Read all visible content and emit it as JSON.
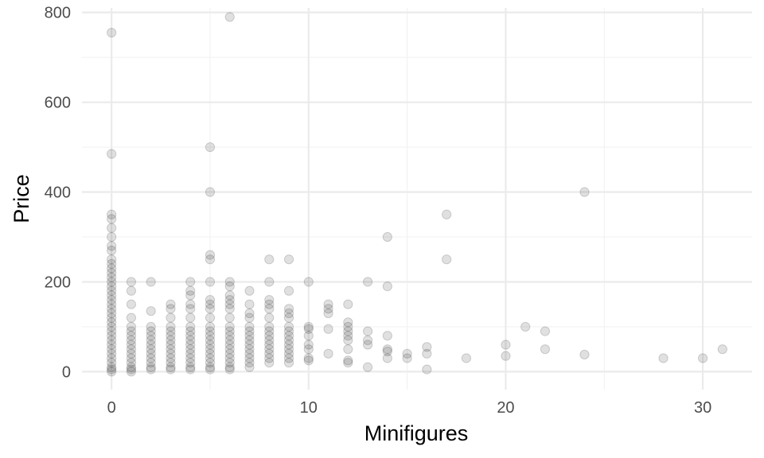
{
  "chart_data": {
    "type": "scatter",
    "title": "",
    "xlabel": "Minifigures",
    "ylabel": "Price",
    "xlim": [
      -1.5,
      32.5
    ],
    "ylim": [
      -40,
      810
    ],
    "x_ticks": [
      0,
      10,
      20,
      30
    ],
    "y_ticks": [
      0,
      200,
      400,
      600,
      800
    ],
    "x_tick_labels": [
      "0",
      "10",
      "20",
      "30"
    ],
    "y_tick_labels": [
      "0",
      "200",
      "400",
      "600",
      "800"
    ],
    "grid": true,
    "legend": "none",
    "point_color": "#000000",
    "point_alpha": 0.15,
    "points": [
      [
        0,
        755
      ],
      [
        0,
        485
      ],
      [
        0,
        350
      ],
      [
        0,
        340
      ],
      [
        0,
        320
      ],
      [
        0,
        300
      ],
      [
        0,
        280
      ],
      [
        0,
        270
      ],
      [
        0,
        250
      ],
      [
        0,
        240
      ],
      [
        0,
        230
      ],
      [
        0,
        220
      ],
      [
        0,
        210
      ],
      [
        0,
        200
      ],
      [
        0,
        190
      ],
      [
        0,
        180
      ],
      [
        0,
        170
      ],
      [
        0,
        160
      ],
      [
        0,
        150
      ],
      [
        0,
        140
      ],
      [
        0,
        130
      ],
      [
        0,
        120
      ],
      [
        0,
        110
      ],
      [
        0,
        100
      ],
      [
        0,
        90
      ],
      [
        0,
        80
      ],
      [
        0,
        70
      ],
      [
        0,
        60
      ],
      [
        0,
        50
      ],
      [
        0,
        40
      ],
      [
        0,
        30
      ],
      [
        0,
        20
      ],
      [
        0,
        10
      ],
      [
        0,
        5
      ],
      [
        0,
        0
      ],
      [
        1,
        200
      ],
      [
        1,
        180
      ],
      [
        1,
        150
      ],
      [
        1,
        120
      ],
      [
        1,
        100
      ],
      [
        1,
        90
      ],
      [
        1,
        80
      ],
      [
        1,
        70
      ],
      [
        1,
        60
      ],
      [
        1,
        50
      ],
      [
        1,
        40
      ],
      [
        1,
        30
      ],
      [
        1,
        20
      ],
      [
        1,
        10
      ],
      [
        1,
        5
      ],
      [
        1,
        0
      ],
      [
        2,
        200
      ],
      [
        2,
        135
      ],
      [
        2,
        100
      ],
      [
        2,
        90
      ],
      [
        2,
        80
      ],
      [
        2,
        70
      ],
      [
        2,
        60
      ],
      [
        2,
        50
      ],
      [
        2,
        40
      ],
      [
        2,
        30
      ],
      [
        2,
        20
      ],
      [
        2,
        10
      ],
      [
        2,
        5
      ],
      [
        3,
        150
      ],
      [
        3,
        140
      ],
      [
        3,
        120
      ],
      [
        3,
        100
      ],
      [
        3,
        90
      ],
      [
        3,
        80
      ],
      [
        3,
        70
      ],
      [
        3,
        60
      ],
      [
        3,
        50
      ],
      [
        3,
        40
      ],
      [
        3,
        30
      ],
      [
        3,
        20
      ],
      [
        3,
        10
      ],
      [
        3,
        5
      ],
      [
        4,
        200
      ],
      [
        4,
        180
      ],
      [
        4,
        170
      ],
      [
        4,
        150
      ],
      [
        4,
        140
      ],
      [
        4,
        120
      ],
      [
        4,
        100
      ],
      [
        4,
        90
      ],
      [
        4,
        80
      ],
      [
        4,
        70
      ],
      [
        4,
        60
      ],
      [
        4,
        50
      ],
      [
        4,
        40
      ],
      [
        4,
        30
      ],
      [
        4,
        20
      ],
      [
        4,
        10
      ],
      [
        4,
        5
      ],
      [
        5,
        500
      ],
      [
        5,
        400
      ],
      [
        5,
        260
      ],
      [
        5,
        250
      ],
      [
        5,
        200
      ],
      [
        5,
        160
      ],
      [
        5,
        150
      ],
      [
        5,
        140
      ],
      [
        5,
        120
      ],
      [
        5,
        100
      ],
      [
        5,
        90
      ],
      [
        5,
        80
      ],
      [
        5,
        70
      ],
      [
        5,
        60
      ],
      [
        5,
        50
      ],
      [
        5,
        40
      ],
      [
        5,
        30
      ],
      [
        5,
        20
      ],
      [
        5,
        10
      ],
      [
        5,
        5
      ],
      [
        6,
        790
      ],
      [
        6,
        200
      ],
      [
        6,
        190
      ],
      [
        6,
        170
      ],
      [
        6,
        160
      ],
      [
        6,
        150
      ],
      [
        6,
        140
      ],
      [
        6,
        120
      ],
      [
        6,
        100
      ],
      [
        6,
        90
      ],
      [
        6,
        80
      ],
      [
        6,
        70
      ],
      [
        6,
        60
      ],
      [
        6,
        50
      ],
      [
        6,
        40
      ],
      [
        6,
        30
      ],
      [
        6,
        20
      ],
      [
        6,
        10
      ],
      [
        6,
        5
      ],
      [
        7,
        180
      ],
      [
        7,
        150
      ],
      [
        7,
        130
      ],
      [
        7,
        120
      ],
      [
        7,
        100
      ],
      [
        7,
        90
      ],
      [
        7,
        80
      ],
      [
        7,
        70
      ],
      [
        7,
        60
      ],
      [
        7,
        50
      ],
      [
        7,
        40
      ],
      [
        7,
        30
      ],
      [
        7,
        20
      ],
      [
        7,
        10
      ],
      [
        8,
        250
      ],
      [
        8,
        200
      ],
      [
        8,
        160
      ],
      [
        8,
        150
      ],
      [
        8,
        140
      ],
      [
        8,
        120
      ],
      [
        8,
        100
      ],
      [
        8,
        90
      ],
      [
        8,
        80
      ],
      [
        8,
        70
      ],
      [
        8,
        60
      ],
      [
        8,
        50
      ],
      [
        8,
        40
      ],
      [
        8,
        30
      ],
      [
        8,
        20
      ],
      [
        9,
        250
      ],
      [
        9,
        180
      ],
      [
        9,
        140
      ],
      [
        9,
        130
      ],
      [
        9,
        120
      ],
      [
        9,
        100
      ],
      [
        9,
        90
      ],
      [
        9,
        80
      ],
      [
        9,
        70
      ],
      [
        9,
        60
      ],
      [
        9,
        50
      ],
      [
        9,
        40
      ],
      [
        9,
        30
      ],
      [
        9,
        20
      ],
      [
        10,
        200
      ],
      [
        10,
        100
      ],
      [
        10,
        95
      ],
      [
        10,
        80
      ],
      [
        10,
        60
      ],
      [
        10,
        50
      ],
      [
        10,
        30
      ],
      [
        10,
        25
      ],
      [
        11,
        150
      ],
      [
        11,
        140
      ],
      [
        11,
        130
      ],
      [
        11,
        95
      ],
      [
        11,
        40
      ],
      [
        12,
        150
      ],
      [
        12,
        110
      ],
      [
        12,
        100
      ],
      [
        12,
        90
      ],
      [
        12,
        80
      ],
      [
        12,
        70
      ],
      [
        12,
        50
      ],
      [
        12,
        25
      ],
      [
        12,
        20
      ],
      [
        13,
        200
      ],
      [
        13,
        90
      ],
      [
        13,
        70
      ],
      [
        13,
        60
      ],
      [
        13,
        10
      ],
      [
        14,
        300
      ],
      [
        14,
        190
      ],
      [
        14,
        80
      ],
      [
        14,
        50
      ],
      [
        14,
        45
      ],
      [
        14,
        30
      ],
      [
        15,
        40
      ],
      [
        15,
        30
      ],
      [
        16,
        55
      ],
      [
        16,
        40
      ],
      [
        16,
        5
      ],
      [
        17,
        350
      ],
      [
        17,
        250
      ],
      [
        18,
        30
      ],
      [
        20,
        60
      ],
      [
        20,
        35
      ],
      [
        21,
        100
      ],
      [
        22,
        90
      ],
      [
        22,
        50
      ],
      [
        24,
        400
      ],
      [
        24,
        38
      ],
      [
        28,
        30
      ],
      [
        30,
        30
      ],
      [
        31,
        50
      ]
    ]
  }
}
